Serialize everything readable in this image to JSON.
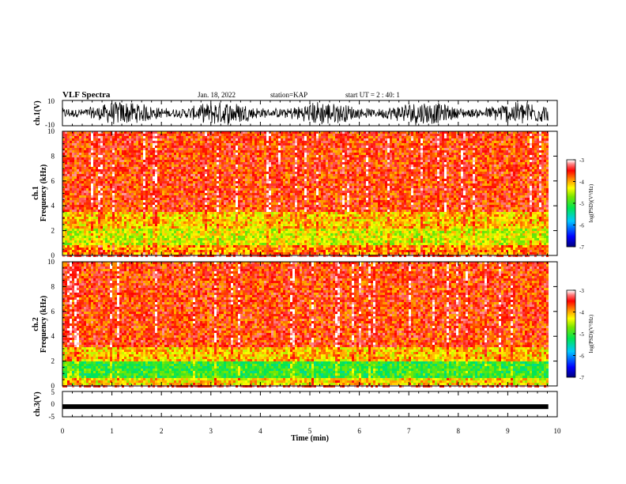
{
  "header": {
    "title": "VLF Spectra",
    "date": "Jan. 18, 2022",
    "station": "station=KAP",
    "start": "start UT = 2 : 40: 1"
  },
  "chart_data": [
    {
      "type": "line",
      "panel": "ch1-waveform",
      "ylabel": "ch.1(V)",
      "ylim": [
        -10,
        10
      ],
      "yticks": [
        "10",
        "-10"
      ],
      "description_values": "dense noisy waveform spanning roughly -8 to 8 V"
    },
    {
      "type": "heatmap",
      "panel": "ch1-spectrogram",
      "ylabel": "ch.1 Frequency (kHz)",
      "ylim": [
        0,
        10
      ],
      "yticks": [
        "0",
        "2",
        "4",
        "6",
        "8",
        "10"
      ],
      "colorbar": {
        "label": "log(PSD)(V²/Hz)",
        "ticks": [
          "-3",
          "-4",
          "-5",
          "-6",
          "-7"
        ],
        "range": [
          -7,
          -3
        ]
      },
      "bands": [
        {
          "fmin": 0.1,
          "fmax": 0.9,
          "level": -3.9
        },
        {
          "fmin": 0.9,
          "fmax": 2.2,
          "level": -4.4
        },
        {
          "fmin": 2.2,
          "fmax": 3.5,
          "level": -4.1
        },
        {
          "fmin": 3.5,
          "fmax": 10,
          "level": -3.6
        }
      ]
    },
    {
      "type": "heatmap",
      "panel": "ch2-spectrogram",
      "ylabel": "ch.2 Frequency (kHz)",
      "ylim": [
        0,
        10
      ],
      "yticks": [
        "0",
        "2",
        "4",
        "6",
        "8",
        "10"
      ],
      "colorbar": {
        "label": "log(PSD)(V²/Hz)",
        "ticks": [
          "-3",
          "-4",
          "-5",
          "-6",
          "-7"
        ],
        "range": [
          -7,
          -3
        ]
      },
      "bands": [
        {
          "fmin": 0.1,
          "fmax": 0.7,
          "level": -4.2
        },
        {
          "fmin": 0.7,
          "fmax": 1.9,
          "level": -5.0
        },
        {
          "fmin": 1.9,
          "fmax": 3.2,
          "level": -4.1
        },
        {
          "fmin": 3.2,
          "fmax": 10,
          "level": -3.6
        }
      ]
    },
    {
      "type": "line",
      "panel": "ch3-waveform",
      "ylabel": "ch.3(V)",
      "ylim": [
        -5,
        5
      ],
      "yticks": [
        "5",
        "0",
        "-5"
      ],
      "description_values": "near-constant trace around -1 V"
    }
  ],
  "xaxis": {
    "label": "Time (min)",
    "xlim": [
      0,
      10
    ],
    "ticks": [
      "0",
      "1",
      "2",
      "3",
      "4",
      "5",
      "6",
      "7",
      "8",
      "9",
      "10"
    ],
    "data_end": 9.82
  }
}
